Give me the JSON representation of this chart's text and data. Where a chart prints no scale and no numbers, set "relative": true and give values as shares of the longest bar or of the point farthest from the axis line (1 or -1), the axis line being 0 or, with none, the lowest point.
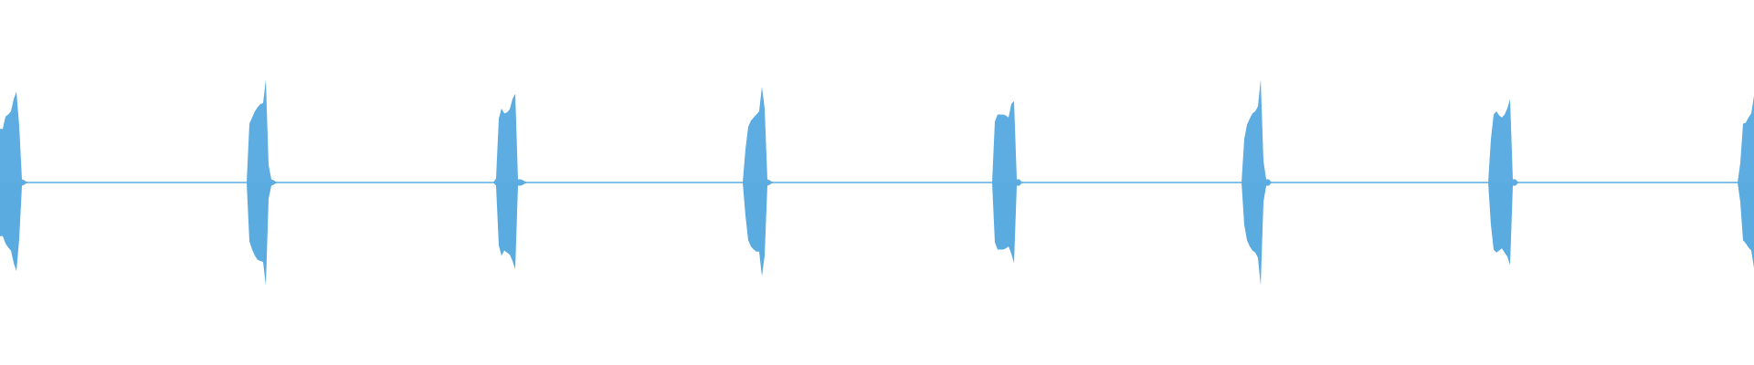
{
  "chart_data": {
    "type": "area",
    "relative": true,
    "ref_lines": [
      {
        "axis": "y",
        "value": 0,
        "color": "#5dade2"
      }
    ],
    "categories": [
      null,
      null,
      null,
      null,
      null,
      null,
      null,
      null,
      null,
      null,
      null,
      null,
      null,
      null,
      null,
      null,
      null,
      null,
      null,
      null,
      null,
      null,
      null,
      null,
      null,
      null,
      null,
      null,
      null,
      null,
      null,
      null,
      null,
      null,
      null,
      null,
      null,
      null,
      null,
      null,
      null,
      null,
      null,
      null,
      null,
      null,
      null,
      null,
      null,
      null,
      null,
      null,
      null,
      null,
      null,
      null,
      null,
      null,
      null,
      null,
      null,
      null,
      null,
      null,
      null,
      null,
      null,
      null,
      null,
      null,
      null,
      null,
      null,
      null,
      null,
      null,
      null,
      null,
      null,
      null,
      null,
      null,
      null,
      null,
      null,
      null,
      null,
      null,
      null,
      null,
      null,
      null,
      null,
      null,
      null,
      null,
      null,
      null,
      null,
      null,
      null,
      null,
      null,
      null,
      null,
      null,
      null,
      null,
      null,
      null,
      null,
      null,
      null,
      null,
      null,
      null,
      null,
      null,
      null,
      null,
      null,
      null,
      null,
      null,
      null,
      null,
      null,
      null,
      null,
      null,
      null,
      null,
      null,
      null,
      null,
      null,
      null,
      null,
      null,
      null,
      null,
      null,
      null,
      null,
      null,
      null,
      null,
      null,
      null,
      null,
      null,
      null,
      null,
      null,
      null,
      null,
      null,
      null,
      null,
      null,
      null,
      null,
      null,
      null,
      null,
      null,
      null,
      null,
      null,
      null,
      null,
      null,
      null,
      null,
      null,
      null,
      null,
      null,
      null,
      null,
      null,
      null,
      null,
      null,
      null,
      null,
      null,
      null,
      null,
      null,
      null,
      null,
      null,
      null,
      null,
      null,
      null,
      null,
      null,
      null,
      null,
      null,
      null,
      null,
      null,
      null,
      null,
      null,
      null,
      null,
      null,
      null,
      null,
      null,
      null,
      null,
      null,
      null,
      null,
      null,
      null,
      null,
      null,
      null,
      null,
      null,
      null,
      null,
      null,
      null,
      null,
      null,
      null,
      null,
      null,
      null,
      null,
      null,
      null,
      null,
      null,
      null,
      null,
      null,
      null,
      null,
      null,
      null,
      null,
      null,
      null,
      null,
      null,
      null,
      null,
      null,
      null,
      null,
      null,
      null,
      null,
      null,
      null,
      null,
      null,
      null,
      null,
      null,
      null,
      null,
      null,
      null,
      null,
      null,
      null,
      null,
      null,
      null,
      null,
      null,
      null,
      null,
      null,
      null,
      null,
      null,
      null,
      null,
      null,
      null,
      null,
      null,
      null,
      null,
      null,
      null,
      null,
      null,
      null,
      null,
      null,
      null,
      null,
      null,
      null,
      null,
      null,
      null,
      null,
      null,
      null,
      null,
      null,
      null,
      null,
      null,
      null,
      null,
      null,
      null,
      null,
      null,
      null,
      null,
      null,
      null,
      null,
      null,
      null,
      null,
      null,
      null,
      null,
      null,
      null,
      null,
      null,
      null,
      null,
      null,
      null,
      null,
      null,
      null,
      null,
      null,
      null,
      null,
      null,
      null,
      null,
      null,
      null,
      null,
      null,
      null,
      null,
      null,
      null,
      null,
      null,
      null,
      null,
      null,
      null,
      null,
      null,
      null,
      null,
      null,
      null,
      null,
      null,
      null,
      null,
      null,
      null,
      null,
      null,
      null,
      null,
      null,
      null,
      null,
      null,
      null,
      null,
      null,
      null,
      null,
      null,
      null,
      null,
      null,
      null,
      null,
      null,
      null,
      null,
      null,
      null,
      null,
      null,
      null,
      null,
      null,
      null,
      null,
      null,
      null,
      null,
      null,
      null,
      null,
      null,
      null,
      null,
      null,
      null,
      null,
      null,
      null,
      null,
      null,
      null,
      null,
      null,
      null,
      null,
      null,
      null,
      null,
      null,
      null,
      null,
      null,
      null,
      null,
      null,
      null,
      null,
      null,
      null,
      null,
      null,
      null,
      null,
      null,
      null,
      null,
      null,
      null,
      null,
      null,
      null,
      null,
      null,
      null,
      null,
      null,
      null,
      null,
      null,
      null,
      null,
      null,
      null,
      null,
      null,
      null,
      null,
      null,
      null,
      null,
      null,
      null,
      null,
      null,
      null,
      null,
      null,
      null,
      null,
      null,
      null,
      null,
      null,
      null,
      null,
      null,
      null,
      null,
      null,
      null,
      null,
      null,
      null,
      null,
      null,
      null,
      null,
      null,
      null,
      null,
      null,
      null,
      null,
      null,
      null,
      null,
      null,
      null,
      null,
      null,
      null,
      null,
      null,
      null,
      null,
      null,
      null,
      null,
      null,
      null,
      null,
      null,
      null,
      null,
      null,
      null,
      null,
      null,
      null,
      null,
      null,
      null,
      null,
      null,
      null,
      null,
      null,
      null,
      null,
      null,
      null,
      null,
      null,
      null,
      null,
      null,
      null,
      null,
      null,
      null,
      null,
      null,
      null,
      null,
      null,
      null,
      null,
      null,
      null,
      null,
      null,
      null,
      null,
      null,
      null,
      null,
      null,
      null,
      null,
      null,
      null,
      null,
      null,
      null,
      null,
      null,
      null,
      null,
      null,
      null,
      null,
      null,
      null,
      null,
      null,
      null,
      null,
      null,
      null,
      null,
      null,
      null,
      null,
      null,
      null,
      null,
      null,
      null,
      null,
      null,
      null,
      null,
      null,
      null,
      null,
      null,
      null,
      null,
      null,
      null,
      null,
      null,
      null,
      null,
      null,
      null,
      null,
      null,
      null,
      null,
      null,
      null,
      null,
      null,
      null,
      null,
      null,
      null,
      null,
      null,
      null,
      null,
      null,
      null,
      null,
      null,
      null
    ],
    "series": [
      {
        "color": "#5dade2",
        "values": [
          0.52,
          0.52,
          0.64,
          0.66,
          0.69,
          0.81,
          0.88,
          0.55,
          0.03,
          0.02,
          0,
          0,
          0,
          0,
          0,
          0,
          0,
          0,
          0,
          0,
          0,
          0,
          0,
          0,
          0,
          0,
          0,
          0,
          0,
          0,
          0,
          0,
          0,
          0,
          0,
          0,
          0,
          0,
          0,
          0,
          0,
          0,
          0,
          0,
          0,
          0,
          0,
          0,
          0,
          0,
          0,
          0,
          0,
          0,
          0,
          0,
          0,
          0,
          0,
          0,
          0,
          0,
          0,
          0,
          0,
          0,
          0,
          0,
          0,
          0,
          0,
          0,
          0,
          0,
          0,
          0,
          0,
          0,
          0,
          0,
          0,
          0,
          0,
          0,
          0,
          0,
          0,
          0,
          0,
          0,
          0,
          0.57,
          0.63,
          0.69,
          0.73,
          0.76,
          0.77,
          1,
          0.17,
          0.03,
          0.02,
          0,
          0,
          0,
          0,
          0,
          0,
          0,
          0,
          0,
          0,
          0,
          0,
          0,
          0,
          0,
          0,
          0,
          0,
          0,
          0,
          0,
          0,
          0,
          0,
          0,
          0,
          0,
          0,
          0,
          0,
          0,
          0,
          0,
          0,
          0,
          0,
          0,
          0,
          0,
          0,
          0,
          0,
          0,
          0,
          0,
          0,
          0,
          0,
          0,
          0,
          0,
          0,
          0,
          0,
          0,
          0,
          0,
          0,
          0,
          0,
          0,
          0,
          0,
          0,
          0,
          0,
          0,
          0,
          0,
          0,
          0,
          0,
          0,
          0,
          0,
          0,
          0,
          0,
          0,
          0,
          0.04,
          0.62,
          0.72,
          0.67,
          0.68,
          0.71,
          0.81,
          0.86,
          0.03,
          0.03,
          0.02,
          0,
          0,
          0,
          0,
          0,
          0,
          0,
          0,
          0,
          0,
          0,
          0,
          0,
          0,
          0,
          0,
          0,
          0,
          0,
          0,
          0,
          0,
          0,
          0,
          0,
          0,
          0,
          0,
          0,
          0,
          0,
          0,
          0,
          0,
          0,
          0,
          0,
          0,
          0,
          0,
          0,
          0,
          0,
          0,
          0,
          0,
          0,
          0,
          0,
          0,
          0,
          0,
          0,
          0,
          0,
          0,
          0,
          0,
          0,
          0,
          0,
          0,
          0,
          0,
          0,
          0,
          0,
          0,
          0,
          0,
          0,
          0,
          0,
          0,
          0,
          0,
          0,
          0,
          0,
          0,
          0.32,
          0.54,
          0.6,
          0.63,
          0.66,
          0.69,
          0.93,
          0.72,
          0.03,
          0.02,
          0,
          0,
          0,
          0,
          0,
          0,
          0,
          0,
          0,
          0,
          0,
          0,
          0,
          0,
          0,
          0,
          0,
          0,
          0,
          0,
          0,
          0,
          0,
          0,
          0,
          0,
          0,
          0,
          0,
          0,
          0,
          0,
          0,
          0,
          0,
          0,
          0,
          0,
          0,
          0,
          0,
          0,
          0,
          0,
          0,
          0,
          0,
          0,
          0,
          0,
          0,
          0,
          0,
          0,
          0,
          0,
          0,
          0,
          0,
          0,
          0,
          0,
          0,
          0,
          0,
          0,
          0,
          0,
          0,
          0,
          0,
          0,
          0,
          0,
          0,
          0,
          0,
          0,
          0,
          0,
          0,
          0.59,
          0.66,
          0.66,
          0.66,
          0.65,
          0.63,
          0.76,
          0.79,
          0.03,
          0.03,
          0,
          0,
          0,
          0,
          0,
          0,
          0,
          0,
          0,
          0,
          0,
          0,
          0,
          0,
          0,
          0,
          0,
          0,
          0,
          0,
          0,
          0,
          0,
          0,
          0,
          0,
          0,
          0,
          0,
          0,
          0,
          0,
          0,
          0,
          0,
          0,
          0,
          0,
          0,
          0,
          0,
          0,
          0,
          0,
          0,
          0,
          0,
          0,
          0,
          0,
          0,
          0,
          0,
          0,
          0,
          0,
          0,
          0,
          0,
          0,
          0,
          0,
          0,
          0,
          0,
          0,
          0,
          0,
          0,
          0,
          0,
          0,
          0,
          0,
          0,
          0,
          0,
          0,
          0,
          0,
          0,
          0.42,
          0.56,
          0.62,
          0.67,
          0.69,
          0.74,
          1,
          0.21,
          0.03,
          0.03,
          0,
          0,
          0,
          0,
          0,
          0,
          0,
          0,
          0,
          0,
          0,
          0,
          0,
          0,
          0,
          0,
          0,
          0,
          0,
          0,
          0,
          0,
          0,
          0,
          0,
          0,
          0,
          0,
          0,
          0,
          0,
          0,
          0,
          0,
          0,
          0,
          0,
          0,
          0,
          0,
          0,
          0,
          0,
          0,
          0,
          0,
          0,
          0,
          0,
          0,
          0,
          0,
          0,
          0,
          0,
          0,
          0,
          0,
          0,
          0,
          0,
          0,
          0,
          0,
          0,
          0,
          0,
          0,
          0,
          0,
          0,
          0,
          0,
          0,
          0,
          0,
          0,
          0,
          0,
          0,
          0.42,
          0.66,
          0.69,
          0.65,
          0.63,
          0.66,
          0.72,
          0.81,
          0.03,
          0.03,
          0,
          0,
          0,
          0,
          0,
          0,
          0,
          0,
          0,
          0,
          0,
          0,
          0,
          0,
          0,
          0,
          0,
          0,
          0,
          0,
          0,
          0,
          0,
          0,
          0,
          0,
          0,
          0,
          0,
          0,
          0,
          0,
          0,
          0,
          0,
          0,
          0,
          0,
          0,
          0,
          0,
          0,
          0,
          0,
          0,
          0,
          0,
          0,
          0,
          0,
          0,
          0,
          0,
          0,
          0,
          0,
          0,
          0,
          0,
          0,
          0,
          0,
          0,
          0,
          0,
          0,
          0,
          0,
          0,
          0,
          0,
          0,
          0,
          0,
          0,
          0,
          0,
          0,
          0,
          0,
          0,
          0.19,
          0.57,
          0.58,
          0.63,
          0.67,
          0.84
        ]
      },
      {
        "color": "#5aabe0",
        "values": [
          -0.52,
          -0.52,
          -0.59,
          -0.63,
          -0.66,
          -0.78,
          -0.86,
          -0.55,
          -0.03,
          -0.02,
          0,
          0,
          0,
          0,
          0,
          0,
          0,
          0,
          0,
          0,
          0,
          0,
          0,
          0,
          0,
          0,
          0,
          0,
          0,
          0,
          0,
          0,
          0,
          0,
          0,
          0,
          0,
          0,
          0,
          0,
          0,
          0,
          0,
          0,
          0,
          0,
          0,
          0,
          0,
          0,
          0,
          0,
          0,
          0,
          0,
          0,
          0,
          0,
          0,
          0,
          0,
          0,
          0,
          0,
          0,
          0,
          0,
          0,
          0,
          0,
          0,
          0,
          0,
          0,
          0,
          0,
          0,
          0,
          0,
          0,
          0,
          0,
          0,
          0,
          0,
          0,
          0,
          0,
          0,
          0,
          0,
          -0.57,
          -0.65,
          -0.71,
          -0.75,
          -0.76,
          -0.77,
          -1,
          -0.16,
          -0.03,
          -0.02,
          0,
          0,
          0,
          0,
          0,
          0,
          0,
          0,
          0,
          0,
          0,
          0,
          0,
          0,
          0,
          0,
          0,
          0,
          0,
          0,
          0,
          0,
          0,
          0,
          0,
          0,
          0,
          0,
          0,
          0,
          0,
          0,
          0,
          0,
          0,
          0,
          0,
          0,
          0,
          0,
          0,
          0,
          0,
          0,
          0,
          0,
          0,
          0,
          0,
          0,
          0,
          0,
          0,
          0,
          0,
          0,
          0,
          0,
          0,
          0,
          0,
          0,
          0,
          0,
          0,
          0,
          0,
          0,
          0,
          0,
          0,
          0,
          0,
          0,
          0,
          0,
          0,
          0,
          0,
          0,
          -0.03,
          -0.61,
          -0.71,
          -0.66,
          -0.68,
          -0.7,
          -0.76,
          -0.84,
          -0.03,
          -0.03,
          -0.02,
          0,
          0,
          0,
          0,
          0,
          0,
          0,
          0,
          0,
          0,
          0,
          0,
          0,
          0,
          0,
          0,
          0,
          0,
          0,
          0,
          0,
          0,
          0,
          0,
          0,
          0,
          0,
          0,
          0,
          0,
          0,
          0,
          0,
          0,
          0,
          0,
          0,
          0,
          0,
          0,
          0,
          0,
          0,
          0,
          0,
          0,
          0,
          0,
          0,
          0,
          0,
          0,
          0,
          0,
          0,
          0,
          0,
          0,
          0,
          0,
          0,
          0,
          0,
          0,
          0,
          0,
          0,
          0,
          0,
          0,
          0,
          0,
          0,
          0,
          0,
          0,
          0,
          0,
          0,
          0,
          -0.32,
          -0.56,
          -0.62,
          -0.65,
          -0.67,
          -0.67,
          -0.91,
          -0.71,
          -0.03,
          -0.02,
          0,
          0,
          0,
          0,
          0,
          0,
          0,
          0,
          0,
          0,
          0,
          0,
          0,
          0,
          0,
          0,
          0,
          0,
          0,
          0,
          0,
          0,
          0,
          0,
          0,
          0,
          0,
          0,
          0,
          0,
          0,
          0,
          0,
          0,
          0,
          0,
          0,
          0,
          0,
          0,
          0,
          0,
          0,
          0,
          0,
          0,
          0,
          0,
          0,
          0,
          0,
          0,
          0,
          0,
          0,
          0,
          0,
          0,
          0,
          0,
          0,
          0,
          0,
          0,
          0,
          0,
          0,
          0,
          0,
          0,
          0,
          0,
          0,
          0,
          0,
          0,
          0,
          0,
          0,
          0,
          0,
          -0.58,
          -0.65,
          -0.65,
          -0.65,
          -0.64,
          -0.62,
          -0.69,
          -0.78,
          -0.03,
          -0.03,
          0,
          0,
          0,
          0,
          0,
          0,
          0,
          0,
          0,
          0,
          0,
          0,
          0,
          0,
          0,
          0,
          0,
          0,
          0,
          0,
          0,
          0,
          0,
          0,
          0,
          0,
          0,
          0,
          0,
          0,
          0,
          0,
          0,
          0,
          0,
          0,
          0,
          0,
          0,
          0,
          0,
          0,
          0,
          0,
          0,
          0,
          0,
          0,
          0,
          0,
          0,
          0,
          0,
          0,
          0,
          0,
          0,
          0,
          0,
          0,
          0,
          0,
          0,
          0,
          0,
          0,
          0,
          0,
          0,
          0,
          0,
          0,
          0,
          0,
          0,
          0,
          0,
          0,
          0,
          0,
          0,
          -0.41,
          -0.56,
          -0.62,
          -0.66,
          -0.68,
          -0.73,
          -1,
          -0.19,
          -0.03,
          -0.03,
          0,
          0,
          0,
          0,
          0,
          0,
          0,
          0,
          0,
          0,
          0,
          0,
          0,
          0,
          0,
          0,
          0,
          0,
          0,
          0,
          0,
          0,
          0,
          0,
          0,
          0,
          0,
          0,
          0,
          0,
          0,
          0,
          0,
          0,
          0,
          0,
          0,
          0,
          0,
          0,
          0,
          0,
          0,
          0,
          0,
          0,
          0,
          0,
          0,
          0,
          0,
          0,
          0,
          0,
          0,
          0,
          0,
          0,
          0,
          0,
          0,
          0,
          0,
          0,
          0,
          0,
          0,
          0,
          0,
          0,
          0,
          0,
          0,
          0,
          0,
          0,
          0,
          0,
          0,
          0,
          -0.41,
          -0.65,
          -0.68,
          -0.66,
          -0.64,
          -0.68,
          -0.72,
          -0.8,
          -0.03,
          -0.03,
          0,
          0,
          0,
          0,
          0,
          0,
          0,
          0,
          0,
          0,
          0,
          0,
          0,
          0,
          0,
          0,
          0,
          0,
          0,
          0,
          0,
          0,
          0,
          0,
          0,
          0,
          0,
          0,
          0,
          0,
          0,
          0,
          0,
          0,
          0,
          0,
          0,
          0,
          0,
          0,
          0,
          0,
          0,
          0,
          0,
          0,
          0,
          0,
          0,
          0,
          0,
          0,
          0,
          0,
          0,
          0,
          0,
          0,
          0,
          0,
          0,
          0,
          0,
          0,
          0,
          0,
          0,
          0,
          0,
          0,
          0,
          0,
          0,
          0,
          0,
          0,
          0,
          0,
          0,
          0,
          0,
          -0.19,
          -0.56,
          -0.59,
          -0.63,
          -0.66,
          -0.83
        ]
      }
    ]
  }
}
